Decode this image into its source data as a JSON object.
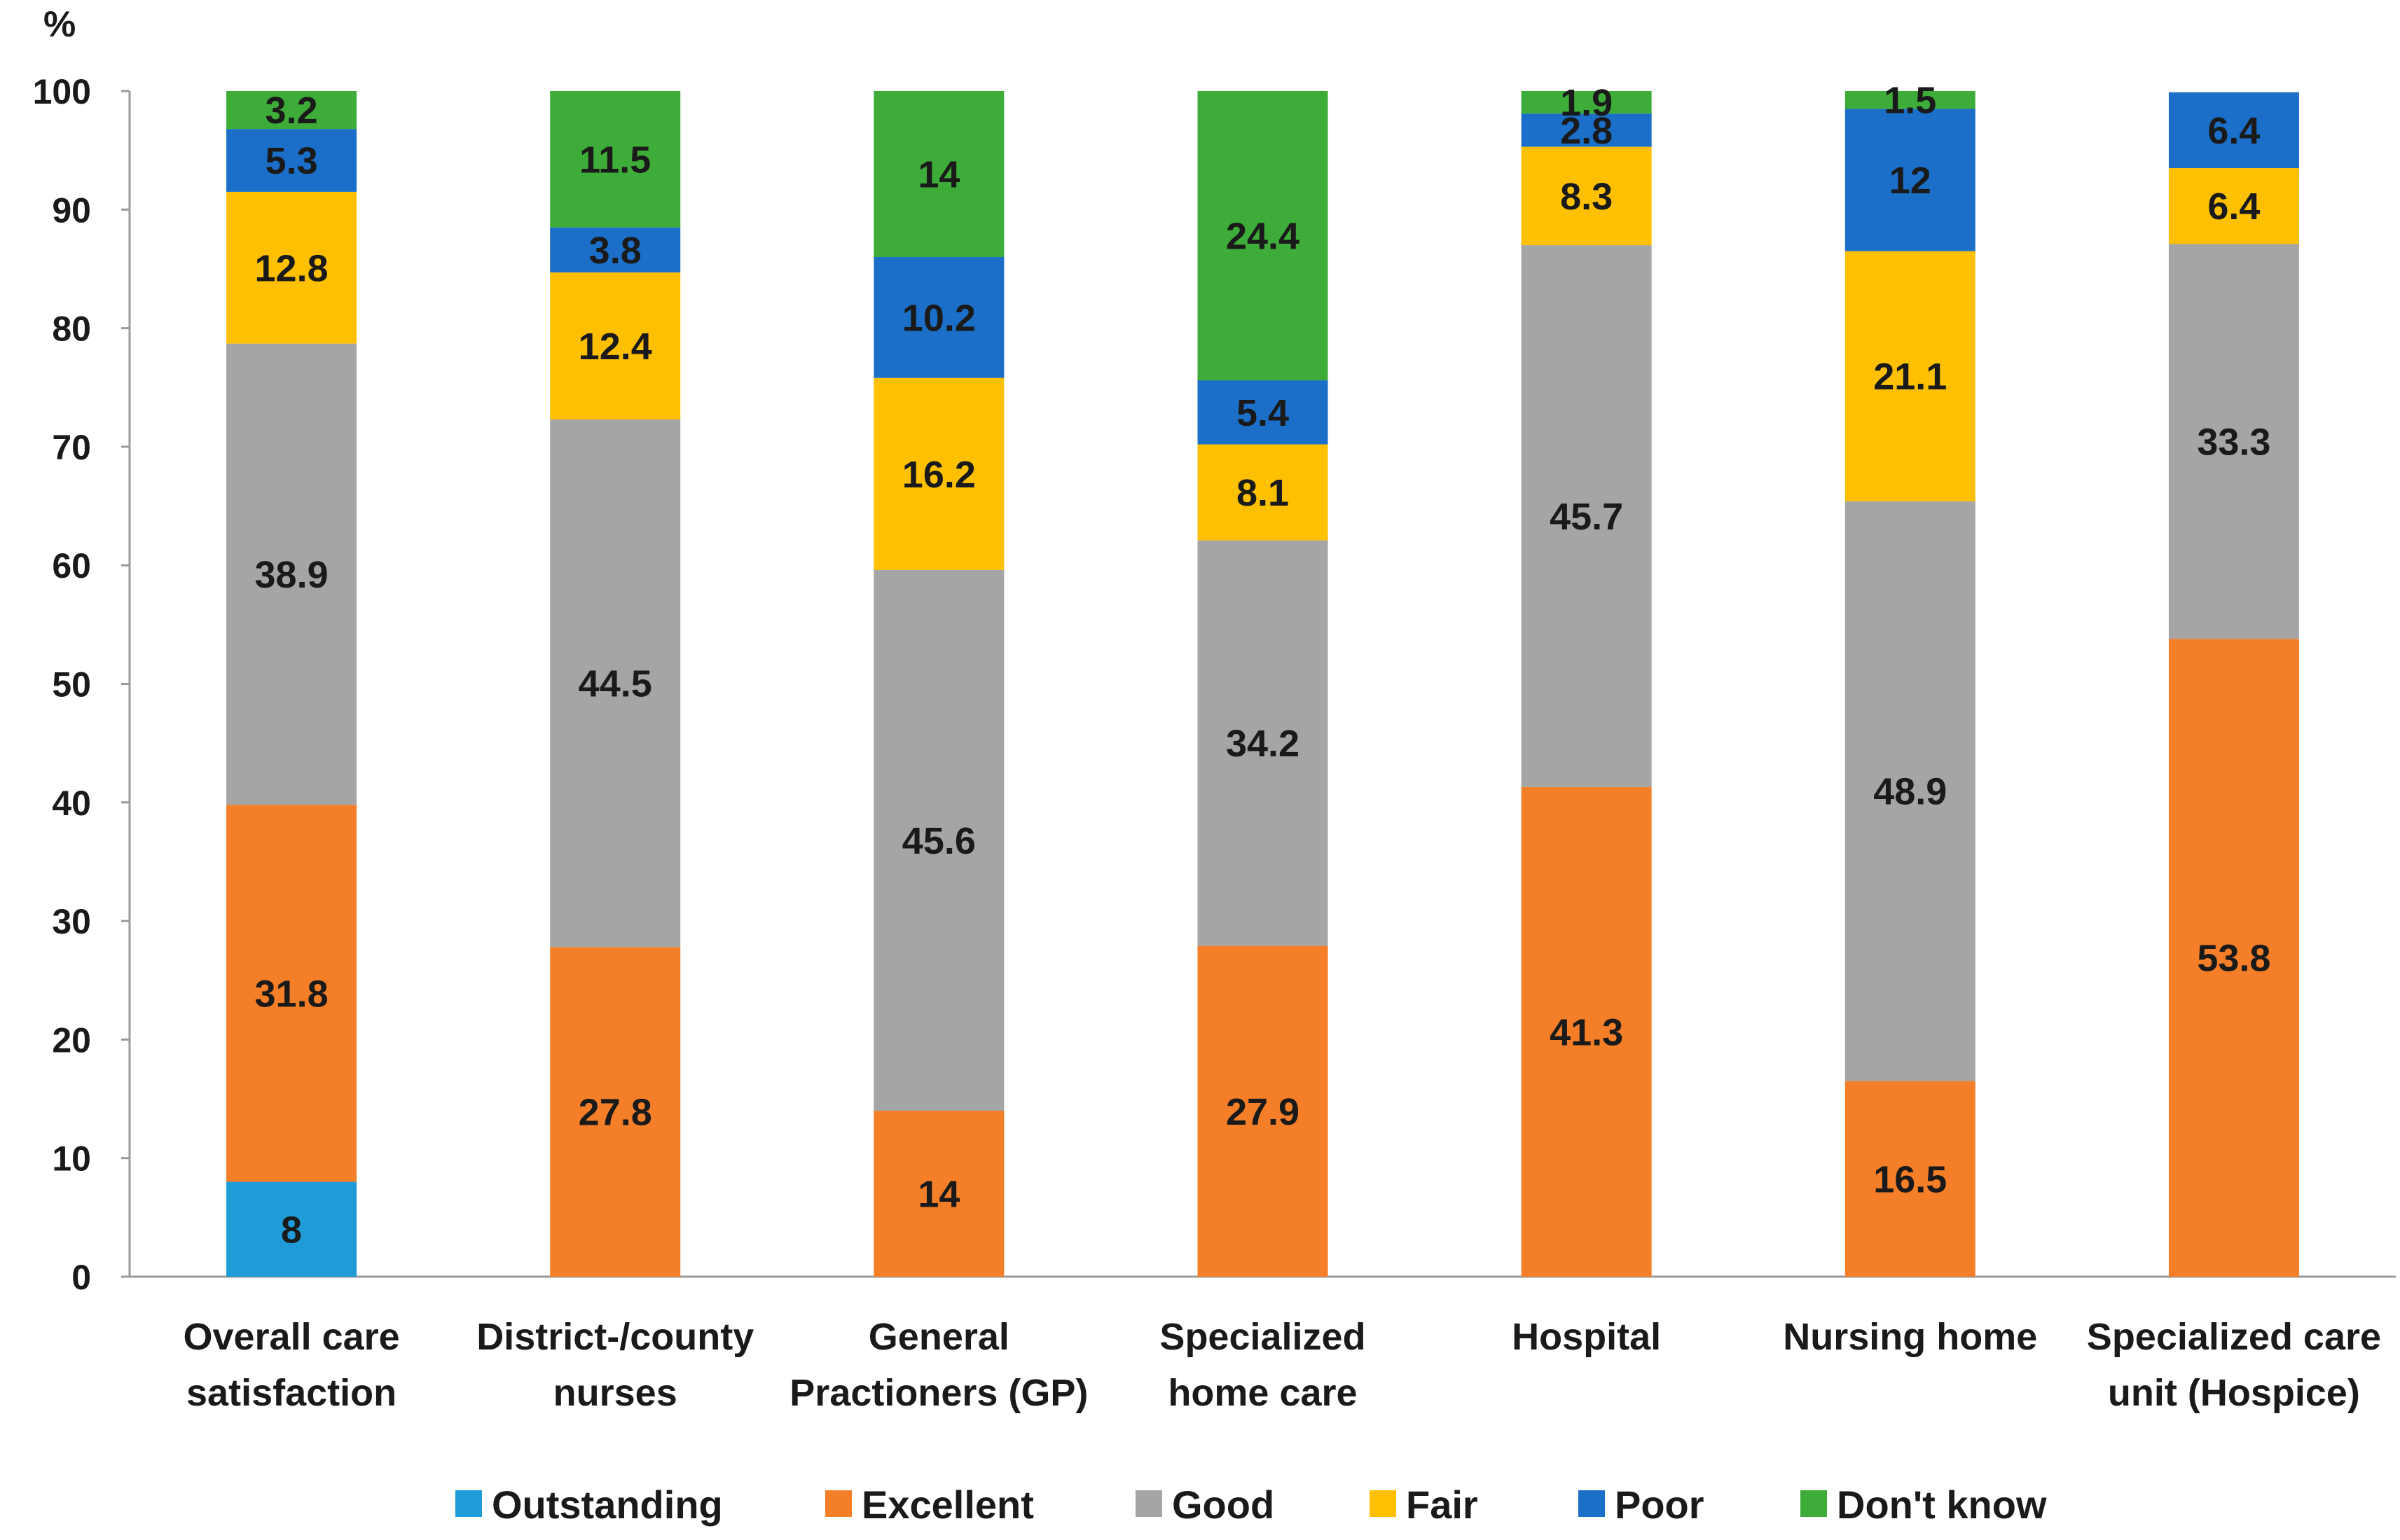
{
  "chart_data": {
    "type": "bar",
    "stacked": true,
    "title": "",
    "xlabel": "",
    "ylabel": "%",
    "ylim": [
      0,
      100
    ],
    "yticks": [
      0,
      10,
      20,
      30,
      40,
      50,
      60,
      70,
      80,
      90,
      100
    ],
    "grid": false,
    "legend_position": "bottom",
    "categories": [
      [
        "Overall care",
        "satisfaction"
      ],
      [
        "District-/county",
        "nurses"
      ],
      [
        "General",
        "Practioners (GP)"
      ],
      [
        "Specialized",
        "home care"
      ],
      [
        "Hospital"
      ],
      [
        "Nursing home"
      ],
      [
        "Specialized care",
        "unit (Hospice)"
      ]
    ],
    "series": [
      {
        "name": "Outstanding",
        "color": "#1f9bd7",
        "values": [
          8,
          0,
          0,
          0,
          0,
          0,
          0
        ],
        "labels": [
          "8",
          "",
          "",
          "",
          "",
          "",
          ""
        ]
      },
      {
        "name": "Excellent",
        "color": "#f57f29",
        "values": [
          31.8,
          27.8,
          14,
          27.9,
          41.3,
          16.5,
          53.8
        ],
        "labels": [
          "31.8",
          "27.8",
          "14",
          "27.9",
          "41.3",
          "16.5",
          "53.8"
        ]
      },
      {
        "name": "Good",
        "color": "#a5a5a5",
        "values": [
          38.9,
          44.5,
          45.6,
          34.2,
          45.7,
          48.9,
          33.3
        ],
        "labels": [
          "38.9",
          "44.5",
          "45.6",
          "34.2",
          "45.7",
          "48.9",
          "33.3"
        ]
      },
      {
        "name": "Fair",
        "color": "#fec000",
        "values": [
          12.8,
          12.4,
          16.2,
          8.1,
          8.3,
          21.1,
          6.4
        ],
        "labels": [
          "12.8",
          "12.4",
          "16.2",
          "8.1",
          "8.3",
          "21.1",
          "6.4"
        ]
      },
      {
        "name": "Poor",
        "color": "#1b6fc8",
        "values": [
          5.3,
          3.8,
          10.2,
          5.4,
          2.8,
          12,
          6.4
        ],
        "labels": [
          "5.3",
          "3.8",
          "10.2",
          "5.4",
          "2.8",
          "12",
          "6.4"
        ]
      },
      {
        "name": "Don't know",
        "color": "#3eac38",
        "values": [
          3.2,
          11.5,
          14,
          24.4,
          1.9,
          1.5,
          0
        ],
        "labels": [
          "3.2",
          "11.5",
          "14",
          "24.4",
          "1.9",
          "1.5",
          ""
        ]
      }
    ]
  }
}
